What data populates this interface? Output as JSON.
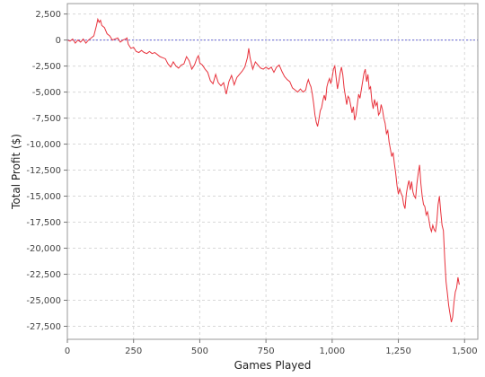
{
  "chart_data": {
    "type": "line",
    "title": "",
    "xlabel": "Games Played",
    "ylabel": "Total Profit ($)",
    "xlim": [
      0,
      1550
    ],
    "ylim": [
      -28750,
      3500
    ],
    "x_ticks": [
      0,
      250,
      500,
      750,
      1000,
      1250,
      1500
    ],
    "x_tick_labels": [
      "0",
      "250",
      "500",
      "750",
      "1,000",
      "1,250",
      "1,500"
    ],
    "y_ticks": [
      2500,
      0,
      -2500,
      -5000,
      -7500,
      -10000,
      -12500,
      -15000,
      -17500,
      -20000,
      -22500,
      -25000,
      -27500
    ],
    "y_tick_labels": [
      "2,500",
      "0",
      "-2,500",
      "-5,000",
      "-7,500",
      "-10,000",
      "-12,500",
      "-15,000",
      "-17,500",
      "-20,000",
      "-22,500",
      "-25,000",
      "-27,500"
    ],
    "grid": true,
    "reference_line": {
      "y": 0,
      "color": "#6a6ad8",
      "style": "dashed"
    },
    "series_color": "#e8323c",
    "series": [
      {
        "points": [
          [
            0,
            0
          ],
          [
            10,
            -100
          ],
          [
            20,
            100
          ],
          [
            30,
            -300
          ],
          [
            40,
            0
          ],
          [
            50,
            -200
          ],
          [
            60,
            100
          ],
          [
            70,
            -300
          ],
          [
            80,
            0
          ],
          [
            90,
            200
          ],
          [
            100,
            400
          ],
          [
            110,
            1400
          ],
          [
            115,
            2000
          ],
          [
            120,
            1700
          ],
          [
            125,
            1900
          ],
          [
            130,
            1400
          ],
          [
            140,
            1200
          ],
          [
            150,
            600
          ],
          [
            160,
            400
          ],
          [
            170,
            0
          ],
          [
            180,
            100
          ],
          [
            190,
            200
          ],
          [
            200,
            -200
          ],
          [
            210,
            0
          ],
          [
            220,
            100
          ],
          [
            225,
            200
          ],
          [
            230,
            -400
          ],
          [
            240,
            -800
          ],
          [
            250,
            -700
          ],
          [
            260,
            -1100
          ],
          [
            270,
            -1200
          ],
          [
            280,
            -1000
          ],
          [
            290,
            -1200
          ],
          [
            300,
            -1300
          ],
          [
            310,
            -1100
          ],
          [
            320,
            -1300
          ],
          [
            330,
            -1200
          ],
          [
            340,
            -1400
          ],
          [
            350,
            -1600
          ],
          [
            360,
            -1700
          ],
          [
            370,
            -1800
          ],
          [
            380,
            -2300
          ],
          [
            390,
            -2600
          ],
          [
            400,
            -2100
          ],
          [
            410,
            -2500
          ],
          [
            420,
            -2700
          ],
          [
            430,
            -2400
          ],
          [
            440,
            -2300
          ],
          [
            450,
            -1600
          ],
          [
            460,
            -2000
          ],
          [
            470,
            -2800
          ],
          [
            480,
            -2400
          ],
          [
            490,
            -1700
          ],
          [
            495,
            -1500
          ],
          [
            500,
            -2200
          ],
          [
            510,
            -2400
          ],
          [
            520,
            -2800
          ],
          [
            530,
            -3100
          ],
          [
            540,
            -3900
          ],
          [
            550,
            -4200
          ],
          [
            560,
            -3300
          ],
          [
            570,
            -4100
          ],
          [
            580,
            -4400
          ],
          [
            590,
            -4100
          ],
          [
            600,
            -5200
          ],
          [
            610,
            -4000
          ],
          [
            620,
            -3400
          ],
          [
            630,
            -4300
          ],
          [
            640,
            -3600
          ],
          [
            650,
            -3300
          ],
          [
            660,
            -3000
          ],
          [
            670,
            -2600
          ],
          [
            680,
            -1700
          ],
          [
            685,
            -800
          ],
          [
            690,
            -1700
          ],
          [
            700,
            -2800
          ],
          [
            710,
            -2100
          ],
          [
            720,
            -2400
          ],
          [
            730,
            -2700
          ],
          [
            740,
            -2800
          ],
          [
            750,
            -2600
          ],
          [
            760,
            -2800
          ],
          [
            770,
            -2600
          ],
          [
            780,
            -3100
          ],
          [
            790,
            -2600
          ],
          [
            800,
            -2400
          ],
          [
            810,
            -3000
          ],
          [
            820,
            -3500
          ],
          [
            830,
            -3800
          ],
          [
            840,
            -4000
          ],
          [
            850,
            -4600
          ],
          [
            860,
            -4800
          ],
          [
            870,
            -5000
          ],
          [
            880,
            -4700
          ],
          [
            890,
            -5000
          ],
          [
            900,
            -4800
          ],
          [
            905,
            -4200
          ],
          [
            910,
            -3800
          ],
          [
            915,
            -4200
          ],
          [
            920,
            -4500
          ],
          [
            925,
            -5200
          ],
          [
            930,
            -6100
          ],
          [
            935,
            -7200
          ],
          [
            940,
            -7900
          ],
          [
            945,
            -8300
          ],
          [
            950,
            -7600
          ],
          [
            955,
            -6800
          ],
          [
            960,
            -6500
          ],
          [
            965,
            -5800
          ],
          [
            970,
            -5300
          ],
          [
            975,
            -5800
          ],
          [
            980,
            -4500
          ],
          [
            985,
            -4000
          ],
          [
            990,
            -3700
          ],
          [
            995,
            -4200
          ],
          [
            1000,
            -3600
          ],
          [
            1005,
            -2800
          ],
          [
            1010,
            -2500
          ],
          [
            1015,
            -3600
          ],
          [
            1020,
            -4700
          ],
          [
            1025,
            -4000
          ],
          [
            1030,
            -3200
          ],
          [
            1035,
            -2600
          ],
          [
            1040,
            -3300
          ],
          [
            1045,
            -4600
          ],
          [
            1050,
            -5400
          ],
          [
            1055,
            -6200
          ],
          [
            1060,
            -5400
          ],
          [
            1065,
            -5600
          ],
          [
            1070,
            -6300
          ],
          [
            1075,
            -7000
          ],
          [
            1080,
            -6400
          ],
          [
            1085,
            -7700
          ],
          [
            1090,
            -7200
          ],
          [
            1095,
            -6200
          ],
          [
            1100,
            -5200
          ],
          [
            1105,
            -5600
          ],
          [
            1110,
            -4800
          ],
          [
            1115,
            -4000
          ],
          [
            1120,
            -3200
          ],
          [
            1125,
            -2800
          ],
          [
            1130,
            -4000
          ],
          [
            1135,
            -3300
          ],
          [
            1140,
            -4700
          ],
          [
            1145,
            -4500
          ],
          [
            1150,
            -5900
          ],
          [
            1155,
            -6600
          ],
          [
            1160,
            -5700
          ],
          [
            1165,
            -6300
          ],
          [
            1170,
            -6000
          ],
          [
            1175,
            -7200
          ],
          [
            1180,
            -7000
          ],
          [
            1185,
            -6200
          ],
          [
            1190,
            -6700
          ],
          [
            1195,
            -7500
          ],
          [
            1200,
            -8000
          ],
          [
            1205,
            -9000
          ],
          [
            1210,
            -8700
          ],
          [
            1215,
            -9800
          ],
          [
            1220,
            -10500
          ],
          [
            1225,
            -11200
          ],
          [
            1230,
            -10800
          ],
          [
            1235,
            -11900
          ],
          [
            1240,
            -12800
          ],
          [
            1245,
            -14000
          ],
          [
            1250,
            -14800
          ],
          [
            1255,
            -14300
          ],
          [
            1260,
            -14700
          ],
          [
            1265,
            -15000
          ],
          [
            1270,
            -15800
          ],
          [
            1275,
            -16200
          ],
          [
            1280,
            -14800
          ],
          [
            1285,
            -14000
          ],
          [
            1290,
            -13500
          ],
          [
            1295,
            -14400
          ],
          [
            1300,
            -13600
          ],
          [
            1305,
            -14600
          ],
          [
            1310,
            -15000
          ],
          [
            1315,
            -15200
          ],
          [
            1320,
            -13800
          ],
          [
            1325,
            -12800
          ],
          [
            1330,
            -12000
          ],
          [
            1335,
            -13800
          ],
          [
            1340,
            -15000
          ],
          [
            1345,
            -15800
          ],
          [
            1350,
            -16000
          ],
          [
            1355,
            -16800
          ],
          [
            1360,
            -16500
          ],
          [
            1365,
            -17200
          ],
          [
            1370,
            -18000
          ],
          [
            1375,
            -18400
          ],
          [
            1380,
            -17800
          ],
          [
            1385,
            -18200
          ],
          [
            1390,
            -18400
          ],
          [
            1395,
            -17500
          ],
          [
            1400,
            -15800
          ],
          [
            1405,
            -15000
          ],
          [
            1410,
            -16500
          ],
          [
            1415,
            -17800
          ],
          [
            1420,
            -18300
          ],
          [
            1425,
            -21000
          ],
          [
            1430,
            -23200
          ],
          [
            1435,
            -24300
          ],
          [
            1440,
            -25500
          ],
          [
            1445,
            -26300
          ],
          [
            1450,
            -27100
          ],
          [
            1455,
            -26600
          ],
          [
            1460,
            -25200
          ],
          [
            1465,
            -24200
          ],
          [
            1470,
            -23800
          ],
          [
            1475,
            -22800
          ],
          [
            1480,
            -23500
          ]
        ]
      }
    ]
  }
}
